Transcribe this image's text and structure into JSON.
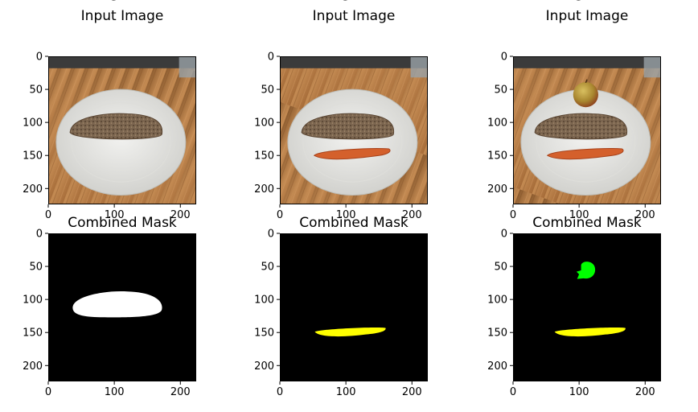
{
  "chart_data": [
    {
      "type": "image",
      "title": "Food Segmentation\nInput Image",
      "xlim": [
        0,
        224
      ],
      "ylim": [
        224,
        0
      ],
      "xticks": [
        0,
        100,
        200
      ],
      "yticks": [
        0,
        50,
        100,
        150,
        200
      ],
      "content": [
        "wooden-board",
        "white-plate",
        "bread-slice"
      ]
    },
    {
      "type": "image",
      "title": "Food Segmentation\nInput Image",
      "xlim": [
        0,
        224
      ],
      "ylim": [
        224,
        0
      ],
      "xticks": [
        0,
        100,
        200
      ],
      "yticks": [
        0,
        50,
        100,
        150,
        200
      ],
      "content": [
        "wooden-board",
        "white-plate",
        "bread-slice",
        "carrot"
      ]
    },
    {
      "type": "image",
      "title": "Food Segmentation\nInput Image",
      "xlim": [
        0,
        224
      ],
      "ylim": [
        224,
        0
      ],
      "xticks": [
        0,
        100,
        200
      ],
      "yticks": [
        0,
        50,
        100,
        150,
        200
      ],
      "content": [
        "wooden-board",
        "white-plate",
        "bread-slice",
        "carrot",
        "apple"
      ]
    },
    {
      "type": "heatmap",
      "title": "Combined Mask",
      "xlim": [
        0,
        224
      ],
      "ylim": [
        224,
        0
      ],
      "xticks": [
        0,
        100,
        200
      ],
      "yticks": [
        0,
        50,
        100,
        150,
        200
      ],
      "background_color": "#000000",
      "regions": [
        {
          "shape": "bread",
          "color": "#ffffff",
          "cx": 103,
          "cy": 108
        }
      ]
    },
    {
      "type": "heatmap",
      "title": "Combined Mask",
      "xlim": [
        0,
        224
      ],
      "ylim": [
        224,
        0
      ],
      "xticks": [
        0,
        100,
        200
      ],
      "yticks": [
        0,
        50,
        100,
        150,
        200
      ],
      "background_color": "#000000",
      "regions": [
        {
          "shape": "carrot",
          "color": "#ffff00",
          "cx": 108,
          "cy": 150
        }
      ]
    },
    {
      "type": "heatmap",
      "title": "Combined Mask",
      "xlim": [
        0,
        224
      ],
      "ylim": [
        224,
        0
      ],
      "xticks": [
        0,
        100,
        200
      ],
      "yticks": [
        0,
        50,
        100,
        150,
        200
      ],
      "background_color": "#000000",
      "regions": [
        {
          "shape": "apple",
          "color": "#00ff00",
          "cx": 110,
          "cy": 55
        },
        {
          "shape": "carrot",
          "color": "#ffff00",
          "cx": 118,
          "cy": 150
        }
      ]
    }
  ]
}
